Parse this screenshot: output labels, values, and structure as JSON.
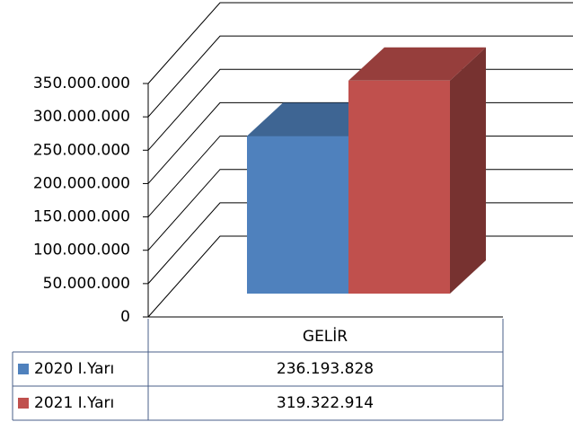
{
  "chart_data": {
    "type": "bar3d",
    "categories": [
      "GELİR"
    ],
    "series": [
      {
        "name": "2020 I.Yarı",
        "color": "#4f81bd",
        "values": [
          236193828
        ],
        "value_labels": [
          "236.193.828"
        ]
      },
      {
        "name": "2021 I.Yarı",
        "color": "#c0504d",
        "values": [
          319322914
        ],
        "value_labels": [
          "319.322.914"
        ]
      }
    ],
    "ylim": [
      0,
      350000000
    ],
    "yticks": [
      0,
      {
        "value": 50000000,
        "label": "50.000.000"
      },
      {
        "value": 100000000,
        "label": "100.000.000"
      },
      {
        "value": 150000000,
        "label": "150.000.000"
      },
      {
        "value": 200000000,
        "label": "200.000.000"
      },
      {
        "value": 250000000,
        "label": "250.000.000"
      },
      {
        "value": 300000000,
        "label": "300.000.000"
      },
      {
        "value": 350000000,
        "label": "350.000.000"
      }
    ],
    "grid": true
  }
}
